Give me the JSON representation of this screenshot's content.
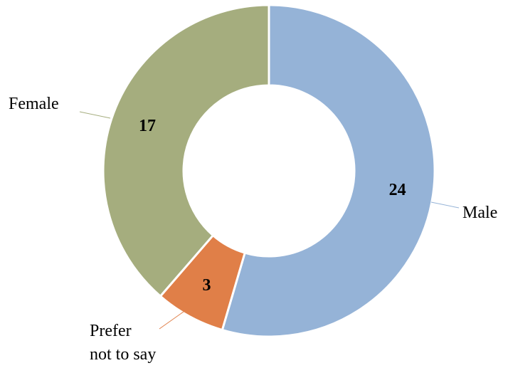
{
  "chart_data": {
    "type": "pie",
    "variant": "donut",
    "title": "",
    "slices": [
      {
        "label": "Male",
        "value": 24,
        "color": "#95B3D7"
      },
      {
        "label": "Prefer not to say",
        "label_lines": [
          "Prefer",
          "not to say"
        ],
        "value": 3,
        "color": "#E07F48"
      },
      {
        "label": "Female",
        "value": 17,
        "color": "#A5AD7E"
      }
    ],
    "legend": "none",
    "data_labels": true
  }
}
